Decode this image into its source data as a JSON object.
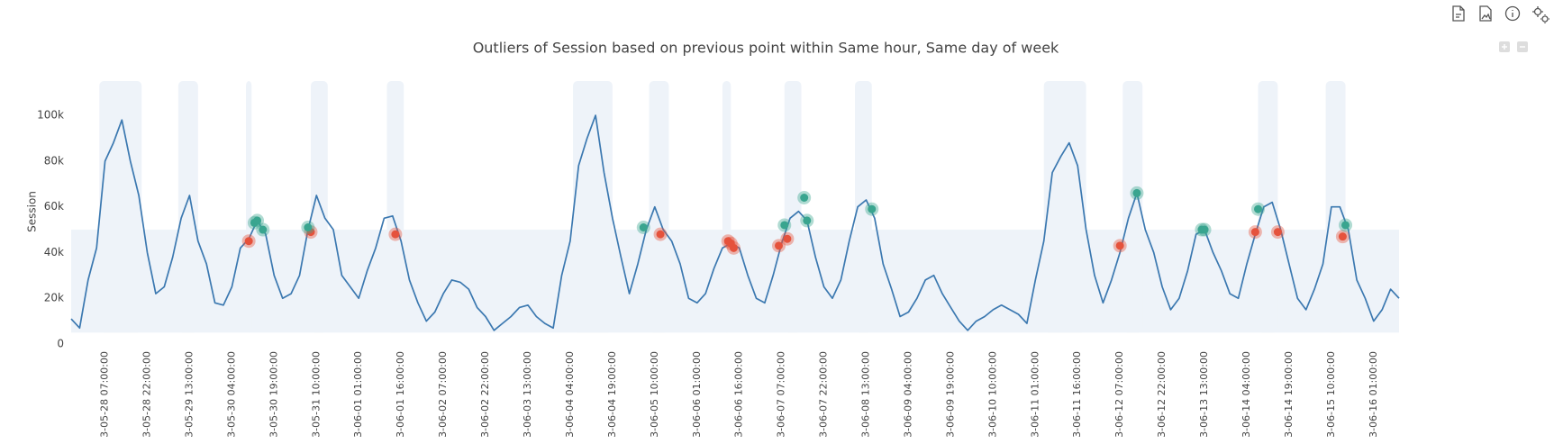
{
  "chart_data": {
    "type": "line",
    "title": "Outliers of Session based on previous point within Same hour, Same day of week",
    "y_label": "Session",
    "color": "#3b78b0",
    "xlim": [
      "05-27 19:00",
      "06-16 10:00"
    ],
    "ylim": [
      0,
      115000
    ],
    "yticks": [
      0,
      {
        "value": 20000,
        "label": "20k"
      },
      {
        "value": 40000,
        "label": "40k"
      },
      {
        "value": 60000,
        "label": "60k"
      },
      {
        "value": 80000,
        "label": "80k"
      },
      {
        "value": 100000,
        "label": "100k"
      }
    ],
    "xticks": [
      "3-05-28 07:00:00",
      "3-05-28 22:00:00",
      "3-05-29 13:00:00",
      "3-05-30 04:00:00",
      "3-05-30 19:00:00",
      "3-05-31 10:00:00",
      "3-06-01 01:00:00",
      "3-06-01 16:00:00",
      "3-06-02 07:00:00",
      "3-06-02 22:00:00",
      "3-06-03 13:00:00",
      "3-06-04 04:00:00",
      "3-06-04 19:00:00",
      "3-06-05 10:00:00",
      "3-06-06 01:00:00",
      "3-06-06 16:00:00",
      "3-06-07 07:00:00",
      "3-06-07 22:00:00",
      "3-06-08 13:00:00",
      "3-06-09 04:00:00",
      "3-06-09 19:00:00",
      "3-06-10 10:00:00",
      "3-06-11 01:00:00",
      "3-06-11 16:00:00",
      "3-06-12 07:00:00",
      "3-06-12 22:00:00",
      "3-06-13 13:00:00",
      "3-06-14 04:00:00",
      "3-06-14 19:00:00",
      "3-06-15 10:00:00",
      "3-06-16 01:00:00"
    ],
    "band": {
      "color": "#eef3f9",
      "lower": 5000,
      "upper": 50000,
      "high_periods": [
        [
          "05-28 05:00",
          "05-28 20:00"
        ],
        [
          "05-29 09:00",
          "05-29 16:00"
        ],
        [
          "05-30 09:00",
          "05-30 11:00"
        ],
        [
          "05-31 08:00",
          "05-31 14:00"
        ],
        [
          "06-01 11:00",
          "06-01 17:00"
        ],
        [
          "06-04 05:00",
          "06-04 19:00"
        ],
        [
          "06-05 08:00",
          "06-05 15:00"
        ],
        [
          "06-06 10:00",
          "06-06 13:00"
        ],
        [
          "06-07 08:00",
          "06-07 14:00"
        ],
        [
          "06-08 09:00",
          "06-08 15:00"
        ],
        [
          "06-11 04:00",
          "06-11 19:00"
        ],
        [
          "06-12 08:00",
          "06-12 15:00"
        ],
        [
          "06-14 08:00",
          "06-14 15:00"
        ],
        [
          "06-15 08:00",
          "06-15 15:00"
        ]
      ]
    },
    "x": [
      "05-27 19:00",
      "05-27 22:00",
      "05-28 01:00",
      "05-28 04:00",
      "05-28 07:00",
      "05-28 10:00",
      "05-28 13:00",
      "05-28 16:00",
      "05-28 19:00",
      "05-28 22:00",
      "05-29 01:00",
      "05-29 04:00",
      "05-29 07:00",
      "05-29 10:00",
      "05-29 13:00",
      "05-29 16:00",
      "05-29 19:00",
      "05-29 22:00",
      "05-30 01:00",
      "05-30 04:00",
      "05-30 07:00",
      "05-30 10:00",
      "05-30 13:00",
      "05-30 16:00",
      "05-30 19:00",
      "05-30 22:00",
      "05-31 01:00",
      "05-31 04:00",
      "05-31 07:00",
      "05-31 10:00",
      "05-31 13:00",
      "05-31 16:00",
      "05-31 19:00",
      "05-31 22:00",
      "06-01 01:00",
      "06-01 04:00",
      "06-01 07:00",
      "06-01 10:00",
      "06-01 13:00",
      "06-01 16:00",
      "06-01 19:00",
      "06-01 22:00",
      "06-02 01:00",
      "06-02 04:00",
      "06-02 07:00",
      "06-02 10:00",
      "06-02 13:00",
      "06-02 16:00",
      "06-02 19:00",
      "06-02 22:00",
      "06-03 01:00",
      "06-03 04:00",
      "06-03 07:00",
      "06-03 10:00",
      "06-03 13:00",
      "06-03 16:00",
      "06-03 19:00",
      "06-03 22:00",
      "06-04 01:00",
      "06-04 04:00",
      "06-04 07:00",
      "06-04 10:00",
      "06-04 13:00",
      "06-04 16:00",
      "06-04 19:00",
      "06-04 22:00",
      "06-05 01:00",
      "06-05 04:00",
      "06-05 07:00",
      "06-05 10:00",
      "06-05 13:00",
      "06-05 16:00",
      "06-05 19:00",
      "06-05 22:00",
      "06-06 01:00",
      "06-06 04:00",
      "06-06 07:00",
      "06-06 10:00",
      "06-06 13:00",
      "06-06 16:00",
      "06-06 19:00",
      "06-06 22:00",
      "06-07 01:00",
      "06-07 04:00",
      "06-07 07:00",
      "06-07 10:00",
      "06-07 13:00",
      "06-07 16:00",
      "06-07 19:00",
      "06-07 22:00",
      "06-08 01:00",
      "06-08 04:00",
      "06-08 07:00",
      "06-08 10:00",
      "06-08 13:00",
      "06-08 16:00",
      "06-08 19:00",
      "06-08 22:00",
      "06-09 01:00",
      "06-09 04:00",
      "06-09 07:00",
      "06-09 10:00",
      "06-09 13:00",
      "06-09 16:00",
      "06-09 19:00",
      "06-09 22:00",
      "06-10 01:00",
      "06-10 04:00",
      "06-10 07:00",
      "06-10 10:00",
      "06-10 13:00",
      "06-10 16:00",
      "06-10 19:00",
      "06-10 22:00",
      "06-11 01:00",
      "06-11 04:00",
      "06-11 07:00",
      "06-11 10:00",
      "06-11 13:00",
      "06-11 16:00",
      "06-11 19:00",
      "06-11 22:00",
      "06-12 01:00",
      "06-12 04:00",
      "06-12 07:00",
      "06-12 10:00",
      "06-12 13:00",
      "06-12 16:00",
      "06-12 19:00",
      "06-12 22:00",
      "06-13 01:00",
      "06-13 04:00",
      "06-13 07:00",
      "06-13 10:00",
      "06-13 13:00",
      "06-13 16:00",
      "06-13 19:00",
      "06-13 22:00",
      "06-14 01:00",
      "06-14 04:00",
      "06-14 07:00",
      "06-14 10:00",
      "06-14 13:00",
      "06-14 16:00",
      "06-14 19:00",
      "06-14 22:00",
      "06-15 01:00",
      "06-15 04:00",
      "06-15 07:00",
      "06-15 10:00",
      "06-15 13:00",
      "06-15 16:00",
      "06-15 19:00",
      "06-15 22:00",
      "06-16 01:00",
      "06-16 04:00",
      "06-16 07:00",
      "06-16 10:00"
    ],
    "values": [
      11000,
      7000,
      28000,
      42000,
      80000,
      88000,
      98000,
      80000,
      65000,
      40000,
      22000,
      25000,
      38000,
      55000,
      65000,
      45000,
      35000,
      18000,
      17000,
      25000,
      42000,
      46000,
      54000,
      48000,
      30000,
      20000,
      22000,
      30000,
      50000,
      65000,
      55000,
      50000,
      30000,
      25000,
      20000,
      32000,
      42000,
      55000,
      56000,
      45000,
      28000,
      18000,
      10000,
      14000,
      22000,
      28000,
      27000,
      24000,
      16000,
      12000,
      6000,
      9000,
      12000,
      16000,
      17000,
      12000,
      9000,
      7000,
      30000,
      45000,
      78000,
      90000,
      100000,
      75000,
      55000,
      38000,
      22000,
      35000,
      50000,
      60000,
      50000,
      45000,
      35000,
      20000,
      18000,
      22000,
      33000,
      42000,
      44000,
      42000,
      30000,
      20000,
      18000,
      30000,
      44000,
      55000,
      58000,
      54000,
      38000,
      25000,
      20000,
      28000,
      45000,
      60000,
      63000,
      55000,
      35000,
      24000,
      12000,
      14000,
      20000,
      28000,
      30000,
      22000,
      16000,
      10000,
      6000,
      10000,
      12000,
      15000,
      17000,
      15000,
      13000,
      9000,
      28000,
      45000,
      75000,
      82000,
      88000,
      78000,
      50000,
      30000,
      18000,
      28000,
      40000,
      55000,
      66000,
      50000,
      40000,
      25000,
      15000,
      20000,
      32000,
      48000,
      50000,
      40000,
      32000,
      22000,
      20000,
      35000,
      48000,
      60000,
      62000,
      50000,
      35000,
      20000,
      15000,
      24000,
      35000,
      60000,
      60000,
      50000,
      28000,
      20000,
      10000,
      15000,
      24000,
      20000
    ],
    "outliers": [
      {
        "color": "#e5533d",
        "x": [
          "05-30 10:00",
          "05-31 08:00",
          "06-01 14:00",
          "06-05 12:00",
          "06-06 12:00",
          "06-06 13:00",
          "06-06 14:00",
          "06-07 06:00",
          "06-07 09:00",
          "06-12 07:00",
          "06-14 07:00",
          "06-14 15:00",
          "06-15 14:00"
        ],
        "values": [
          45000,
          49000,
          48000,
          48000,
          45000,
          44000,
          42000,
          43000,
          46000,
          43000,
          49000,
          49000,
          47000
        ]
      },
      {
        "color": "#3aa58f",
        "x": [
          "05-30 12:00",
          "05-30 13:00",
          "05-30 15:00",
          "05-31 07:00",
          "06-05 06:00",
          "06-07 08:00",
          "06-07 15:00",
          "06-07 16:00",
          "06-08 15:00",
          "06-12 13:00",
          "06-13 12:00",
          "06-13 13:00",
          "06-14 08:00",
          "06-15 15:00"
        ],
        "values": [
          53000,
          54000,
          50000,
          51000,
          51000,
          52000,
          64000,
          54000,
          59000,
          66000,
          50000,
          50000,
          59000,
          52000
        ]
      }
    ]
  }
}
